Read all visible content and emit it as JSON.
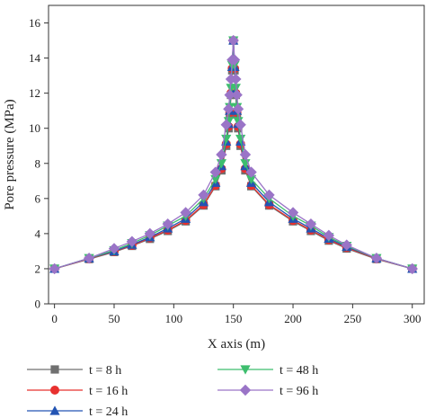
{
  "chart_data": {
    "type": "line",
    "xlabel": "X axis (m)",
    "ylabel": "Pore pressure (MPa)",
    "xlim": [
      -5,
      310
    ],
    "ylim": [
      0,
      17
    ],
    "xticks": [
      0,
      50,
      100,
      150,
      200,
      250,
      300
    ],
    "yticks": [
      0,
      2,
      4,
      6,
      8,
      10,
      12,
      14,
      16
    ],
    "grid": false,
    "legend_position": "bottom",
    "series": [
      {
        "name": "t = 8 h",
        "color": "#707070",
        "marker": "square",
        "x": [
          0,
          29,
          50,
          65,
          80,
          95,
          110,
          125,
          135,
          140,
          144,
          146,
          147,
          148,
          149,
          150,
          151,
          152,
          153,
          154,
          156,
          160,
          165,
          180,
          200,
          215,
          230,
          245,
          270,
          300
        ],
        "y": [
          2.0,
          2.55,
          2.95,
          3.3,
          3.7,
          4.15,
          4.7,
          5.6,
          6.7,
          7.6,
          9.0,
          10.0,
          10.8,
          11.9,
          13.3,
          15.0,
          13.3,
          11.9,
          10.8,
          10.0,
          9.0,
          7.6,
          6.7,
          5.6,
          4.7,
          4.15,
          3.6,
          3.15,
          2.55,
          2.0
        ]
      },
      {
        "name": "t = 16 h",
        "color": "#e8312f",
        "marker": "circle",
        "x": [
          0,
          29,
          50,
          65,
          80,
          95,
          110,
          125,
          135,
          140,
          144,
          146,
          147,
          148,
          149,
          150,
          151,
          152,
          153,
          154,
          156,
          160,
          165,
          180,
          200,
          215,
          230,
          245,
          270,
          300
        ],
        "y": [
          2.0,
          2.57,
          2.98,
          3.33,
          3.75,
          4.2,
          4.75,
          5.65,
          6.75,
          7.7,
          9.1,
          10.1,
          10.9,
          12.0,
          13.4,
          15.0,
          13.4,
          12.0,
          10.9,
          10.1,
          9.1,
          7.7,
          6.75,
          5.65,
          4.75,
          4.2,
          3.65,
          3.2,
          2.57,
          2.0
        ]
      },
      {
        "name": "t = 24 h",
        "color": "#2354b3",
        "marker": "triangle-up",
        "x": [
          0,
          29,
          50,
          65,
          80,
          95,
          110,
          125,
          135,
          140,
          144,
          146,
          147,
          148,
          149,
          150,
          151,
          152,
          153,
          154,
          156,
          160,
          165,
          180,
          200,
          215,
          230,
          245,
          270,
          300
        ],
        "y": [
          2.0,
          2.6,
          3.0,
          3.37,
          3.8,
          4.3,
          4.85,
          5.8,
          6.9,
          7.85,
          9.25,
          10.25,
          11.0,
          12.1,
          13.5,
          15.0,
          13.5,
          12.1,
          11.0,
          10.25,
          9.25,
          7.85,
          6.9,
          5.8,
          4.85,
          4.3,
          3.72,
          3.25,
          2.6,
          2.0
        ]
      },
      {
        "name": "t = 48 h",
        "color": "#3dbe6e",
        "marker": "triangle-down",
        "x": [
          0,
          29,
          50,
          65,
          80,
          95,
          110,
          125,
          135,
          140,
          144,
          146,
          147,
          148,
          149,
          150,
          151,
          152,
          153,
          154,
          156,
          160,
          165,
          180,
          200,
          215,
          230,
          245,
          270,
          300
        ],
        "y": [
          2.0,
          2.6,
          3.05,
          3.45,
          3.9,
          4.45,
          5.0,
          6.0,
          7.1,
          8.0,
          9.4,
          10.4,
          11.2,
          12.3,
          13.6,
          15.0,
          13.6,
          12.3,
          11.2,
          10.4,
          9.4,
          8.0,
          7.1,
          6.0,
          5.0,
          4.45,
          3.8,
          3.3,
          2.6,
          2.0
        ]
      },
      {
        "name": "t = 96 h",
        "color": "#9a74c7",
        "marker": "diamond",
        "x": [
          0,
          29,
          50,
          65,
          80,
          95,
          110,
          125,
          135,
          140,
          144,
          146,
          147,
          148,
          149,
          150,
          151,
          152,
          153,
          154,
          156,
          160,
          165,
          180,
          200,
          215,
          230,
          245,
          270,
          300
        ],
        "y": [
          2.0,
          2.6,
          3.15,
          3.55,
          4.0,
          4.55,
          5.2,
          6.2,
          7.5,
          8.5,
          10.2,
          11.1,
          11.9,
          12.8,
          13.9,
          15.0,
          13.9,
          12.8,
          11.9,
          11.1,
          10.2,
          8.5,
          7.5,
          6.2,
          5.2,
          4.55,
          3.9,
          3.35,
          2.6,
          2.0
        ]
      }
    ]
  }
}
